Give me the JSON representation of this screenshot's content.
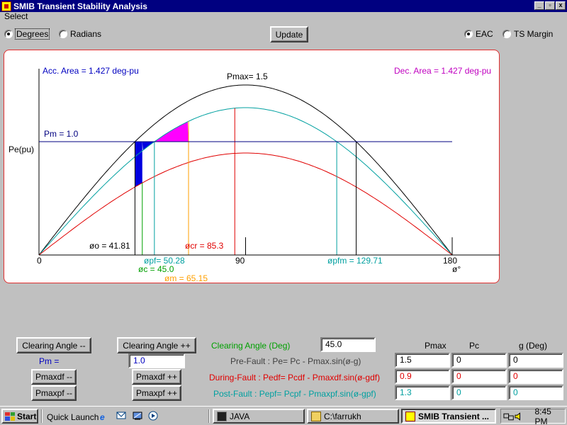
{
  "window": {
    "title": "SMIB Transient Stability Analysis",
    "controls": [
      "_",
      "▫",
      "x"
    ]
  },
  "menu": {
    "select": "Select"
  },
  "top": {
    "degrees": "Degrees",
    "radians": "Radians",
    "update": "Update",
    "eac": "EAC",
    "ts_margin": "TS Margin",
    "unit_selected": "Degrees",
    "mode_selected": "EAC"
  },
  "chart_data": {
    "type": "line",
    "xlim": [
      0,
      200
    ],
    "ylim": [
      0,
      1.6
    ],
    "ylabel": "Pe(pu)",
    "x_ticks": [
      "0",
      "90",
      "180"
    ],
    "x_unit": "ø°",
    "series": [
      {
        "color": "#000000",
        "pmax": 1.5
      },
      {
        "color": "#00a0a0",
        "pmax": 1.3
      },
      {
        "color": "#e00000",
        "pmax": 0.9
      }
    ],
    "pm": 1.0,
    "labels": {
      "acc_area": "Acc. Area = 1.427 deg-pu",
      "dec_area": "Dec. Area = 1.427 deg-pu",
      "pmax": "Pmax= 1.5",
      "pm": "Pm = 1.0",
      "delta_o": "øo = 41.81",
      "delta_cr": "øcr = 85.3",
      "delta_pf": "øpf= 50.28",
      "delta_c": "øc = 45.0",
      "delta_m": "øm = 65.15",
      "delta_pfm": "øpfm = 129.71"
    },
    "angles": {
      "delta_o": 41.81,
      "delta_c": 45.0,
      "delta_pf": 50.28,
      "delta_m": 65.15,
      "delta_cr": 85.3,
      "delta_pfm": 129.71,
      "delta_max": 138.19
    },
    "colors": {
      "acc": "#0000e0",
      "dec": "#ff00ff",
      "pm_line": "#000080",
      "cr": "#e00000",
      "c": "#00a000",
      "m": "#ffa000",
      "pf": "#00a0a0"
    }
  },
  "controls": {
    "clear_dec": "Clearing Angle --",
    "clear_inc": "Clearing Angle ++",
    "clearing_label": "Clearing Angle (Deg)",
    "clearing_value": "45.0",
    "pm_label": "Pm =",
    "pm_value": "1.0",
    "pmaxdf_dec": "Pmaxdf --",
    "pmaxdf_inc": "Pmaxdf ++",
    "pmaxpf_dec": "Pmaxpf --",
    "pmaxpf_inc": "Pmaxpf ++",
    "col_pmax": "Pmax",
    "col_pc": "Pc",
    "col_g": "g (Deg)",
    "prefault_label": "Pre-Fault : Pe= Pc - Pmax.sin(ø-g)",
    "duringfault_label": "During-Fault : Pedf= Pcdf - Pmaxdf.sin(ø-gdf)",
    "postfault_label": "Post-Fault : Pepf= Pcpf - Pmaxpf.sin(ø-gpf)",
    "pre": {
      "pmax": "1.5",
      "pc": "0",
      "g": "0"
    },
    "during": {
      "pmax": "0.9",
      "pc": "0",
      "g": "0"
    },
    "post": {
      "pmax": "1.3",
      "pc": "0",
      "g": "0"
    }
  },
  "taskbar": {
    "start": "Start",
    "quick_launch": "Quick Launch",
    "tasks": [
      "JAVA",
      "C:\\farrukh",
      "SMIB Transient ..."
    ],
    "clock": "8:45 PM"
  }
}
